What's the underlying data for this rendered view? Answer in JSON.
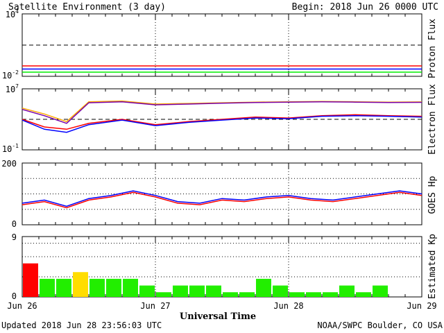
{
  "header": {
    "title": "Satellite Environment (3 day)",
    "begin": "Begin:  2018 Jun 26 0000 UTC"
  },
  "footer": {
    "updated": "Updated 2018 Jun 28 23:56:03 UTC",
    "credit": "NOAA/SWPC Boulder, CO USA"
  },
  "colors": {
    "red": "#ff0000",
    "blue": "#0000ff",
    "green": "#00ee00",
    "purple": "#7700aa",
    "orange": "#ffaa00",
    "kp_green": "#22ee00",
    "kp_yellow": "#ffdd00",
    "kp_red": "#ff0000"
  },
  "chart_data": [
    {
      "type": "line",
      "panel": "proton",
      "ylabel": "Proton Flux",
      "ylim_exp": [
        -2,
        4
      ],
      "log": true,
      "ticks": [
        {
          "label": "10",
          "exp": "4"
        },
        {
          "label": "10",
          "exp": "-2"
        }
      ],
      "threshold": 10,
      "x": [
        0,
        12,
        24,
        36,
        48,
        60,
        72
      ],
      "series": [
        {
          "color": "red",
          "values": [
            0.1,
            0.1,
            0.1,
            0.1,
            0.1,
            0.1,
            0.1
          ]
        },
        {
          "color": "blue",
          "values": [
            0.05,
            0.05,
            0.05,
            0.05,
            0.05,
            0.05,
            0.05
          ]
        },
        {
          "color": "green",
          "values": [
            0.025,
            0.025,
            0.025,
            0.025,
            0.025,
            0.025,
            0.025
          ]
        }
      ]
    },
    {
      "type": "line",
      "panel": "electron",
      "ylabel": "Electron Flux",
      "ylim_exp": [
        -1,
        7
      ],
      "log": true,
      "ticks": [
        {
          "label": "10",
          "exp": "7"
        },
        {
          "label": "10",
          "exp": "-1"
        }
      ],
      "threshold": 1000,
      "x": [
        0,
        4,
        8,
        12,
        18,
        24,
        30,
        36,
        42,
        48,
        54,
        60,
        66,
        72
      ],
      "series": [
        {
          "color": "orange",
          "values": [
            30000,
            5000,
            500,
            200000,
            250000,
            100000,
            120000,
            150000,
            180000,
            200000,
            220000,
            200000,
            180000,
            190000
          ]
        },
        {
          "color": "purple",
          "values": [
            20000,
            3000,
            300,
            150000,
            200000,
            80000,
            100000,
            130000,
            160000,
            180000,
            200000,
            180000,
            160000,
            170000
          ]
        },
        {
          "color": "red",
          "values": [
            1000,
            100,
            50,
            300,
            1000,
            200,
            500,
            1000,
            2000,
            1500,
            3000,
            4000,
            3000,
            2500
          ]
        },
        {
          "color": "blue",
          "values": [
            800,
            50,
            20,
            200,
            800,
            150,
            400,
            800,
            1500,
            1200,
            2500,
            3000,
            2500,
            2000
          ]
        }
      ]
    },
    {
      "type": "line",
      "panel": "goes_hp",
      "ylabel": "GOES Hp",
      "ylim": [
        0,
        200
      ],
      "ticks": [
        {
          "label": "200"
        },
        {
          "label": "0"
        }
      ],
      "gridlines": [
        50,
        100,
        150
      ],
      "x": [
        0,
        4,
        8,
        12,
        16,
        20,
        24,
        28,
        32,
        36,
        40,
        44,
        48,
        52,
        56,
        60,
        64,
        68,
        72
      ],
      "series": [
        {
          "color": "blue",
          "values": [
            70,
            80,
            60,
            85,
            95,
            110,
            95,
            75,
            70,
            85,
            80,
            90,
            95,
            85,
            80,
            90,
            100,
            110,
            100
          ]
        },
        {
          "color": "red",
          "values": [
            65,
            75,
            55,
            80,
            90,
            105,
            90,
            70,
            65,
            80,
            75,
            85,
            90,
            80,
            75,
            85,
            95,
            105,
            95
          ]
        }
      ]
    },
    {
      "type": "bar",
      "panel": "kp",
      "ylabel": "Estimated Kp",
      "ylim": [
        0,
        9
      ],
      "ticks": [
        {
          "label": "9"
        },
        {
          "label": "0"
        }
      ],
      "gridlines": [
        3,
        6,
        8
      ],
      "values": [
        5,
        2.7,
        2.7,
        3.7,
        2.7,
        2.7,
        2.7,
        1.7,
        0.7,
        1.7,
        1.7,
        1.7,
        0.7,
        0.7,
        2.7,
        1.7,
        0.7,
        0.7,
        0.7,
        1.7,
        0.7,
        1.7
      ],
      "colors": [
        "kp_red",
        "kp_green",
        "kp_green",
        "kp_yellow",
        "kp_green",
        "kp_green",
        "kp_green",
        "kp_green",
        "kp_green",
        "kp_green",
        "kp_green",
        "kp_green",
        "kp_green",
        "kp_green",
        "kp_green",
        "kp_green",
        "kp_green",
        "kp_green",
        "kp_green",
        "kp_green",
        "kp_green",
        "kp_green"
      ],
      "xlabel": "Universal Time",
      "xticks": [
        "Jun 26",
        "Jun 27",
        "Jun 28",
        "Jun 29"
      ]
    }
  ]
}
